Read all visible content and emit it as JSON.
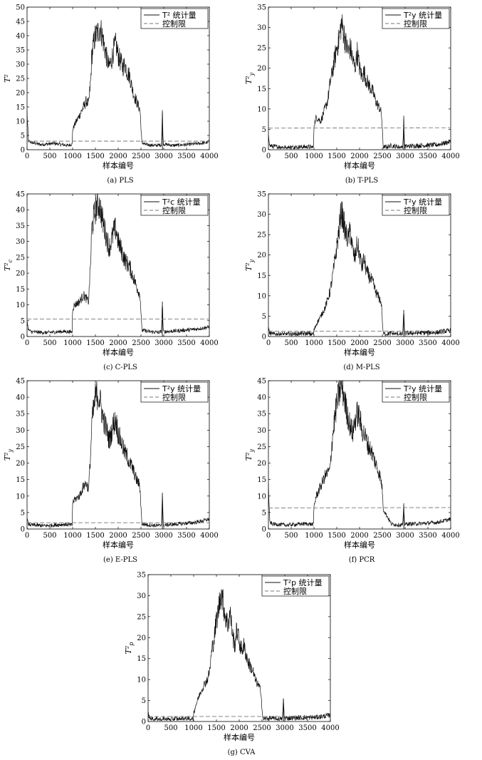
{
  "chart_data": [
    {
      "type": "line",
      "caption": "(a) PLS",
      "ylabel": "T²",
      "xlabel": "样本编号",
      "ylim": [
        0,
        50
      ],
      "yticks": [
        0,
        5,
        10,
        15,
        20,
        25,
        30,
        35,
        40,
        45,
        50
      ],
      "xlim": [
        0,
        4000
      ],
      "xticks": [
        0,
        500,
        1000,
        1500,
        2000,
        2500,
        3000,
        3500,
        4000
      ],
      "xtick_labels": [
        "0",
        "500",
        "1000",
        "1500",
        "2000",
        "2500",
        "3000",
        "3500",
        "4000"
      ],
      "legend_position": "top-right",
      "series": [
        {
          "name": "T² 统计量",
          "style": "solid",
          "x": [
            0,
            30,
            100,
            300,
            600,
            900,
            990,
            1000,
            1050,
            1150,
            1240,
            1300,
            1350,
            1400,
            1420,
            1470,
            1500,
            1550,
            1600,
            1650,
            1700,
            1750,
            1800,
            1850,
            1900,
            1950,
            2000,
            2050,
            2100,
            2150,
            2200,
            2250,
            2300,
            2350,
            2400,
            2450,
            2480,
            2500,
            2520,
            2600,
            2800,
            2950,
            2970,
            2990,
            3200,
            3500,
            3800,
            3950,
            4000
          ],
          "y": [
            13,
            3,
            2.5,
            1.8,
            2.2,
            1.5,
            2,
            7,
            9,
            12,
            15,
            17,
            16,
            25,
            33,
            38,
            40,
            41,
            43,
            40,
            36,
            32,
            29,
            31,
            35,
            37,
            33,
            31,
            29,
            30,
            27,
            26,
            22,
            19,
            17,
            15,
            14,
            8,
            2.5,
            1.8,
            1.5,
            1.7,
            13,
            2,
            1.5,
            1.8,
            2.2,
            2.5,
            3
          ]
        },
        {
          "name": "控制限",
          "style": "dashed",
          "x": [
            0,
            4000
          ],
          "y": [
            3,
            3
          ]
        }
      ]
    },
    {
      "type": "line",
      "caption": "(b)  T-PLS",
      "ylabel": "T²",
      "ylabel_sub": "y",
      "xlabel": "样本编号",
      "ylim": [
        0,
        35
      ],
      "yticks": [
        0,
        5,
        10,
        15,
        20,
        25,
        30,
        35
      ],
      "xlim": [
        0,
        4000
      ],
      "xticks": [
        0,
        500,
        1000,
        1500,
        2000,
        2500,
        3000,
        3500,
        4000
      ],
      "xtick_labels": [
        "0",
        "500",
        "1000",
        "1500",
        "2000",
        "2500",
        "3000",
        "3500",
        "4000"
      ],
      "legend_position": "top-right",
      "series": [
        {
          "name": "T²y 统计量",
          "style": "solid",
          "x": [
            0,
            30,
            100,
            400,
            800,
            990,
            1000,
            1050,
            1150,
            1240,
            1300,
            1350,
            1400,
            1450,
            1500,
            1550,
            1600,
            1650,
            1700,
            1750,
            1800,
            1850,
            1900,
            1950,
            2000,
            2050,
            2100,
            2150,
            2200,
            2250,
            2300,
            2350,
            2400,
            2450,
            2480,
            2500,
            2520,
            2700,
            2900,
            2950,
            2970,
            2990,
            3300,
            3700,
            4000
          ],
          "y": [
            4,
            1,
            0.8,
            0.5,
            0.7,
            0.6,
            6,
            8,
            7,
            10,
            12,
            16,
            19,
            22,
            25,
            27,
            31,
            29,
            26,
            24,
            25,
            22,
            20,
            24,
            20,
            18,
            19,
            17,
            16,
            15,
            14,
            12,
            11,
            10,
            9,
            5,
            0.5,
            1,
            0.6,
            0.8,
            7.5,
            0.8,
            1,
            1.2,
            2
          ]
        },
        {
          "name": "控制限",
          "style": "dashed",
          "x": [
            0,
            4000
          ],
          "y": [
            5.3,
            5.4
          ]
        }
      ]
    },
    {
      "type": "line",
      "caption": "(c) C-PLS",
      "ylabel": "T²",
      "ylabel_sub": "c",
      "xlabel": "样本编号",
      "ylim": [
        0,
        45
      ],
      "yticks": [
        0,
        5,
        10,
        15,
        20,
        25,
        30,
        35,
        40,
        45
      ],
      "xlim": [
        0,
        4000
      ],
      "xticks": [
        0,
        500,
        1000,
        1500,
        2000,
        2500,
        3000,
        3500,
        4000
      ],
      "xtick_labels": [
        "0",
        "500",
        "1000",
        "1500",
        "2000",
        "2500",
        "3000",
        "3500",
        "4000"
      ],
      "legend_position": "top-right",
      "series": [
        {
          "name": "T²c 统计量",
          "style": "solid",
          "x": [
            0,
            30,
            100,
            400,
            800,
            990,
            1000,
            1050,
            1150,
            1240,
            1300,
            1350,
            1400,
            1420,
            1470,
            1500,
            1550,
            1600,
            1650,
            1700,
            1750,
            1800,
            1850,
            1900,
            1950,
            2000,
            2050,
            2100,
            2150,
            2200,
            2250,
            2300,
            2350,
            2400,
            2450,
            2480,
            2500,
            2520,
            2700,
            2900,
            2950,
            2970,
            2990,
            3300,
            3700,
            4000
          ],
          "y": [
            5,
            2,
            1.5,
            1.2,
            1.6,
            1.4,
            9,
            10,
            11,
            13,
            12,
            11,
            25,
            34,
            38,
            40,
            42,
            41,
            37,
            34,
            31,
            28,
            30,
            33,
            34,
            30,
            28,
            26,
            24,
            23,
            22,
            20,
            18,
            16,
            14,
            13,
            8,
            2,
            1.5,
            1.3,
            1.6,
            11,
            1.5,
            1.8,
            2.3,
            3
          ]
        },
        {
          "name": "控制限",
          "style": "dashed",
          "x": [
            0,
            4000
          ],
          "y": [
            5.5,
            5.5
          ]
        }
      ]
    },
    {
      "type": "line",
      "caption": "(d)  M-PLS",
      "ylabel": "T²",
      "ylabel_sub": "y",
      "xlabel": "样本编号",
      "ylim": [
        0,
        35
      ],
      "yticks": [
        0,
        5,
        10,
        15,
        20,
        25,
        30,
        35
      ],
      "xlim": [
        0,
        4000
      ],
      "xticks": [
        0,
        500,
        1000,
        1500,
        2000,
        2500,
        3000,
        3500,
        4000
      ],
      "xtick_labels": [
        "0",
        "500",
        "1000",
        "1500",
        "2000",
        "2500",
        "3000",
        "3500",
        "4000"
      ],
      "legend_position": "top-right",
      "series": [
        {
          "name": "T²y 统计量",
          "style": "solid",
          "x": [
            0,
            30,
            100,
            400,
            800,
            990,
            1000,
            1050,
            1150,
            1240,
            1300,
            1350,
            1400,
            1450,
            1500,
            1550,
            1600,
            1650,
            1700,
            1750,
            1800,
            1850,
            1900,
            1950,
            2000,
            2050,
            2100,
            2150,
            2200,
            2250,
            2300,
            2350,
            2400,
            2450,
            2480,
            2500,
            2520,
            2700,
            2900,
            2950,
            2970,
            2990,
            3300,
            3700,
            4000
          ],
          "y": [
            2,
            0.8,
            0.6,
            0.5,
            0.7,
            0.6,
            1.5,
            3,
            5,
            7,
            9,
            11,
            14,
            18,
            22,
            26,
            31,
            28,
            25,
            24,
            26,
            21,
            19,
            23,
            20,
            17,
            19,
            16,
            15,
            14,
            13,
            11,
            10,
            9,
            8,
            4,
            0.6,
            0.8,
            0.5,
            0.7,
            6.5,
            0.8,
            0.9,
            1,
            1.5
          ]
        },
        {
          "name": "控制限",
          "style": "dashed",
          "x": [
            0,
            4000
          ],
          "y": [
            1.3,
            1.3
          ]
        }
      ]
    },
    {
      "type": "line",
      "caption": "(e) E-PLS",
      "ylabel": "T²",
      "ylabel_sub": "y",
      "xlabel": "样本编号",
      "ylim": [
        0,
        45
      ],
      "yticks": [
        0,
        5,
        10,
        15,
        20,
        25,
        30,
        35,
        40,
        45
      ],
      "xlim": [
        0,
        4000
      ],
      "xticks": [
        0,
        500,
        1000,
        1500,
        2000,
        2500,
        3000,
        3500,
        4000
      ],
      "xtick_labels": [
        "0",
        "500",
        "1000",
        "1500",
        "2000",
        "2500",
        "3000",
        "3500",
        "4000"
      ],
      "legend_position": "top-right",
      "series": [
        {
          "name": "T²y 统计量",
          "style": "solid",
          "x": [
            0,
            30,
            100,
            400,
            800,
            990,
            1000,
            1050,
            1150,
            1240,
            1300,
            1350,
            1400,
            1420,
            1470,
            1500,
            1550,
            1600,
            1650,
            1700,
            1750,
            1800,
            1850,
            1900,
            1950,
            2000,
            2050,
            2100,
            2150,
            2200,
            2250,
            2300,
            2350,
            2400,
            2450,
            2480,
            2500,
            2520,
            2700,
            2900,
            2950,
            2970,
            2990,
            3300,
            3700,
            4000
          ],
          "y": [
            3,
            1.5,
            1.2,
            1,
            1.4,
            1.2,
            8,
            9,
            10,
            13,
            14,
            12,
            24,
            32,
            37,
            40,
            41,
            39,
            35,
            32,
            30,
            27,
            29,
            32,
            33,
            29,
            27,
            25,
            23,
            22,
            20,
            19,
            17,
            15,
            14,
            12,
            7,
            1.5,
            1.2,
            1,
            1.3,
            11,
            1.2,
            1.5,
            2,
            3
          ]
        },
        {
          "name": "控制限",
          "style": "dashed",
          "x": [
            0,
            4000
          ],
          "y": [
            1.9,
            1.9
          ]
        }
      ]
    },
    {
      "type": "line",
      "caption": "(f)  PCR",
      "ylabel": "T²",
      "ylabel_sub": "y",
      "xlabel": "样本编号",
      "ylim": [
        0,
        45
      ],
      "yticks": [
        0,
        5,
        10,
        15,
        20,
        25,
        30,
        35,
        40,
        45
      ],
      "xlim": [
        0,
        4000
      ],
      "xticks": [
        0,
        500,
        1000,
        1500,
        2000,
        2500,
        3000,
        3500,
        4000
      ],
      "xtick_labels": [
        "0",
        "500",
        "1000",
        "1500",
        "2000",
        "2500",
        "3000",
        "3500",
        "4000"
      ],
      "legend_position": "top-right",
      "series": [
        {
          "name": "T²y 统计量",
          "style": "solid",
          "x": [
            0,
            30,
            100,
            400,
            800,
            990,
            1000,
            1050,
            1150,
            1240,
            1300,
            1350,
            1400,
            1450,
            1500,
            1550,
            1600,
            1650,
            1700,
            1750,
            1800,
            1850,
            1900,
            1950,
            2000,
            2050,
            2100,
            2150,
            2200,
            2250,
            2300,
            2350,
            2400,
            2450,
            2480,
            2500,
            2520,
            2700,
            2900,
            2950,
            2970,
            2990,
            3300,
            3700,
            4000
          ],
          "y": [
            13,
            2,
            1.5,
            1.2,
            1.6,
            1.4,
            7,
            10,
            13,
            16,
            17,
            18,
            27,
            33,
            38,
            41,
            44,
            41,
            37,
            34,
            31,
            29,
            33,
            35,
            34,
            30,
            29,
            27,
            25,
            24,
            22,
            20,
            18,
            16,
            14,
            12,
            6,
            1.5,
            1.2,
            1.4,
            7,
            1.5,
            1.6,
            2,
            3
          ]
        },
        {
          "name": "控制限",
          "style": "dashed",
          "x": [
            0,
            4000
          ],
          "y": [
            6.4,
            6.5
          ]
        }
      ]
    },
    {
      "type": "line",
      "caption": "(g) CVA",
      "ylabel": "T²",
      "ylabel_sub": "p",
      "xlabel": "样本编号",
      "ylim": [
        0,
        35
      ],
      "yticks": [
        0,
        5,
        10,
        15,
        20,
        25,
        30,
        35
      ],
      "xlim": [
        0,
        4000
      ],
      "xticks": [
        0,
        500,
        1000,
        1500,
        2000,
        2500,
        3000,
        3500,
        4000
      ],
      "xtick_labels": [
        "0",
        "500",
        "1000",
        "1500",
        "2000",
        "2500",
        "3000",
        "3500",
        "4000"
      ],
      "legend_position": "top-right",
      "series": [
        {
          "name": "T²p 统计量",
          "style": "solid",
          "x": [
            0,
            30,
            100,
            400,
            800,
            990,
            1000,
            1050,
            1150,
            1240,
            1300,
            1350,
            1400,
            1450,
            1500,
            1550,
            1600,
            1650,
            1700,
            1750,
            1800,
            1850,
            1900,
            1950,
            2000,
            2050,
            2100,
            2150,
            2200,
            2250,
            2300,
            2350,
            2400,
            2450,
            2480,
            2500,
            2520,
            2700,
            2900,
            2950,
            2970,
            2990,
            3300,
            3700,
            4000
          ],
          "y": [
            2,
            0.8,
            0.6,
            0.5,
            0.7,
            0.6,
            2,
            4,
            7,
            9,
            10,
            12,
            17,
            20,
            24,
            27,
            31,
            28,
            25,
            23,
            26,
            21,
            18,
            22,
            19,
            17,
            18,
            16,
            14,
            13,
            12,
            10,
            9,
            8,
            7,
            3,
            0.6,
            0.8,
            0.5,
            0.7,
            5.5,
            0.8,
            0.9,
            1,
            1.5
          ]
        },
        {
          "name": "控制限",
          "style": "dashed",
          "x": [
            0,
            4000
          ],
          "y": [
            1.2,
            1.2
          ]
        }
      ]
    }
  ]
}
